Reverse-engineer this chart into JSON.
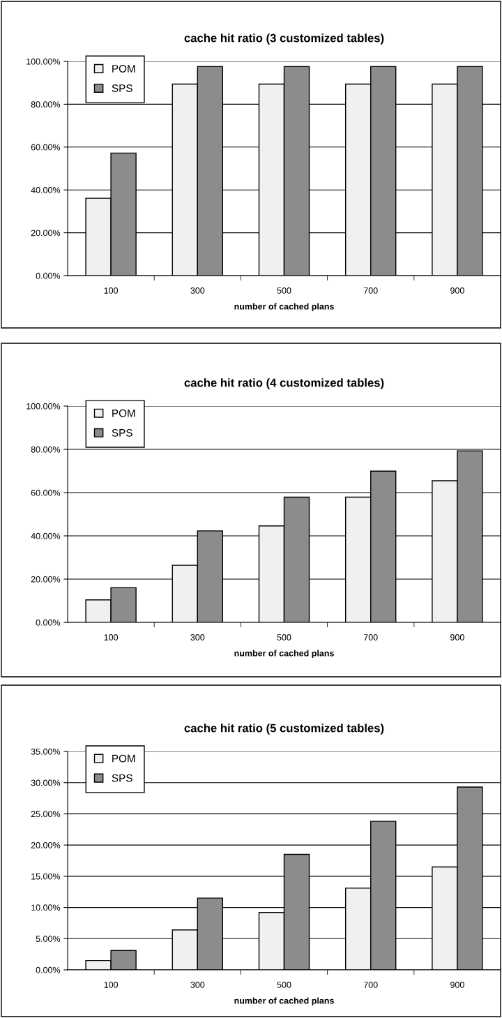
{
  "chart_data": [
    {
      "type": "bar",
      "title": "cache hit ratio (3 customized tables)",
      "xlabel": "number of cached plans",
      "categories": [
        "100",
        "300",
        "500",
        "700",
        "900"
      ],
      "series": [
        {
          "name": "POM",
          "color": "#f0f0f0",
          "values": [
            36.1,
            89.4,
            89.4,
            89.4,
            89.4
          ]
        },
        {
          "name": "SPS",
          "color": "#8c8c8c",
          "values": [
            57.2,
            97.6,
            97.6,
            97.6,
            97.6
          ]
        }
      ],
      "ylim": [
        0,
        100
      ],
      "yticks": [
        {
          "value": 0,
          "label": "0.00%"
        },
        {
          "value": 20,
          "label": "20.00%"
        },
        {
          "value": 40,
          "label": "40.00%"
        },
        {
          "value": 60,
          "label": "60.00%"
        },
        {
          "value": 80,
          "label": "80.00%"
        },
        {
          "value": 100,
          "label": "100.00%"
        }
      ],
      "grid": "y",
      "legend": "top left"
    },
    {
      "type": "bar",
      "title": "cache hit ratio (4 customized tables)",
      "xlabel": "number of cached plans",
      "categories": [
        "100",
        "300",
        "500",
        "700",
        "900"
      ],
      "series": [
        {
          "name": "POM",
          "color": "#f0f0f0",
          "values": [
            10.4,
            26.4,
            44.6,
            57.9,
            65.5
          ]
        },
        {
          "name": "SPS",
          "color": "#8c8c8c",
          "values": [
            16.1,
            42.3,
            57.9,
            69.9,
            79.3
          ]
        }
      ],
      "ylim": [
        0,
        100
      ],
      "yticks": [
        {
          "value": 0,
          "label": "0.00%"
        },
        {
          "value": 20,
          "label": "20.00%"
        },
        {
          "value": 40,
          "label": "40.00%"
        },
        {
          "value": 60,
          "label": "60.00%"
        },
        {
          "value": 80,
          "label": "80.00%"
        },
        {
          "value": 100,
          "label": "100.00%"
        }
      ],
      "grid": "y",
      "legend": "top left"
    },
    {
      "type": "bar",
      "title": "cache hit ratio (5 customized tables)",
      "xlabel": "number of cached plans",
      "categories": [
        "100",
        "300",
        "500",
        "700",
        "900"
      ],
      "series": [
        {
          "name": "POM",
          "color": "#f0f0f0",
          "values": [
            1.5,
            6.4,
            9.2,
            13.1,
            16.5
          ]
        },
        {
          "name": "SPS",
          "color": "#8c8c8c",
          "values": [
            3.1,
            11.5,
            18.5,
            23.8,
            29.3
          ]
        }
      ],
      "ylim": [
        0,
        35
      ],
      "yticks": [
        {
          "value": 0,
          "label": "0.00%"
        },
        {
          "value": 5,
          "label": "5.00%"
        },
        {
          "value": 10,
          "label": "10.00%"
        },
        {
          "value": 15,
          "label": "15.00%"
        },
        {
          "value": 20,
          "label": "20.00%"
        },
        {
          "value": 25,
          "label": "25.00%"
        },
        {
          "value": 30,
          "label": "30.00%"
        },
        {
          "value": 35,
          "label": "35.00%"
        }
      ],
      "grid": "y",
      "legend": "top left"
    }
  ]
}
